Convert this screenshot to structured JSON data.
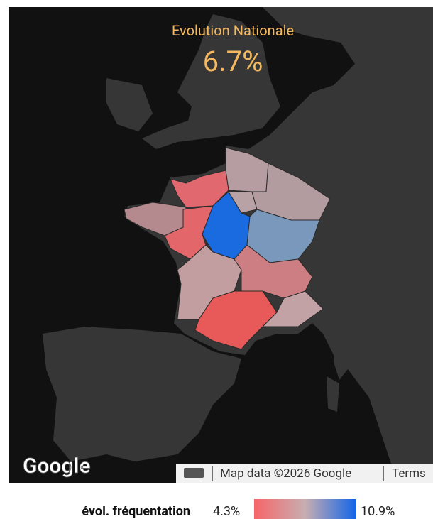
{
  "header": {
    "title": "Evolution Nationale",
    "value": "6.7%"
  },
  "map": {
    "logo": "Google",
    "attribution": "Map data ©2026 Google",
    "terms": "Terms"
  },
  "legend": {
    "label": "évol. fréquentation",
    "min": "4.3%",
    "max": "10.9%"
  }
}
